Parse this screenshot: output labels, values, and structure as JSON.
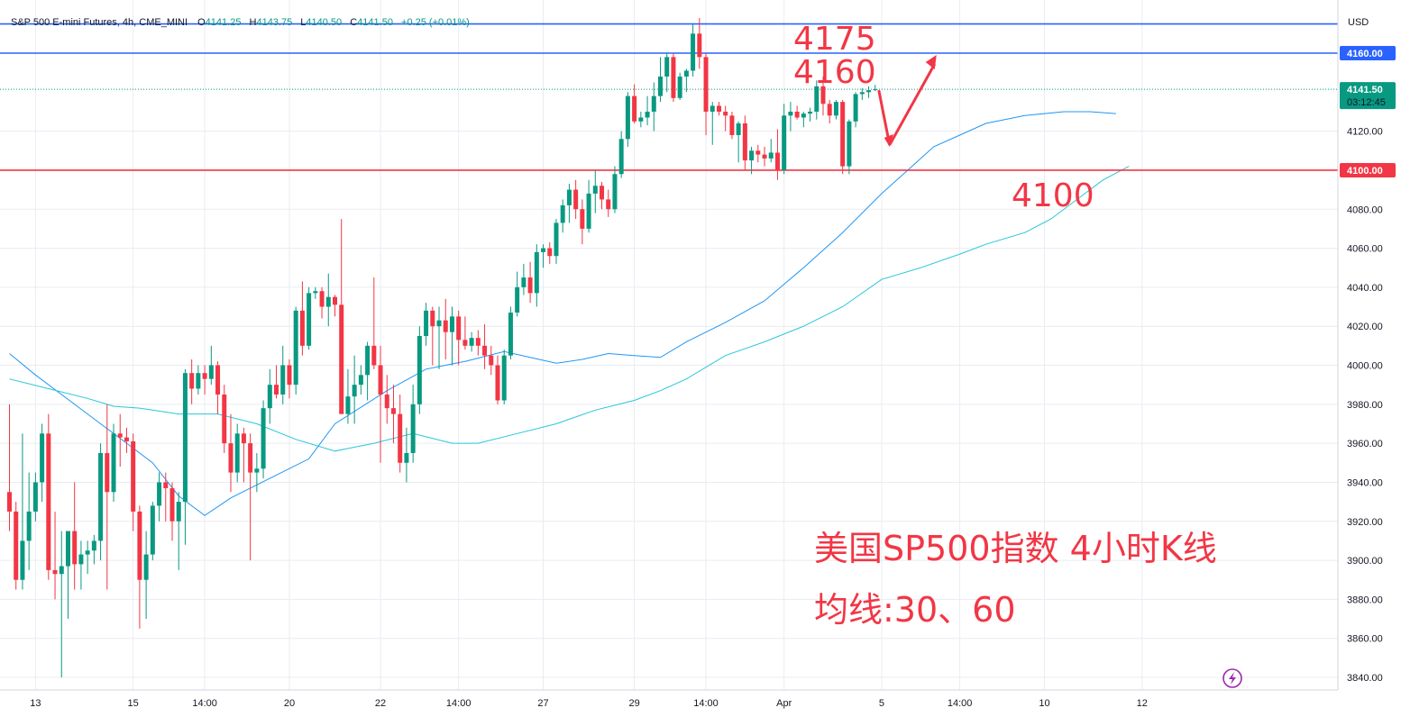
{
  "chart_data": {
    "type": "candlestick",
    "instrument": "S&P 500 E-mini Futures",
    "timeframe": "4h",
    "exchange": "CME_MINI",
    "legend": {
      "title": "S&P 500 E-mini Futures, 4h, CME_MINI",
      "o_label": "O",
      "o": "4141.25",
      "h_label": "H",
      "h": "4143.75",
      "l_label": "L",
      "l": "4140.50",
      "c_label": "C",
      "c": "4141.50",
      "change": "+0.25 (+0.01%)"
    },
    "currency": "USD",
    "ylim": [
      3835,
      4190
    ],
    "y_ticks": [
      3840,
      3860,
      3880,
      3900,
      3920,
      3940,
      3960,
      3980,
      4000,
      4020,
      4040,
      4060,
      4080,
      4120
    ],
    "x_ticks": [
      {
        "label": "13",
        "bar": 4
      },
      {
        "label": "15",
        "bar": 19
      },
      {
        "label": "14:00",
        "bar": 30
      },
      {
        "label": "20",
        "bar": 43
      },
      {
        "label": "22",
        "bar": 57
      },
      {
        "label": "14:00",
        "bar": 69
      },
      {
        "label": "27",
        "bar": 82
      },
      {
        "label": "29",
        "bar": 96
      },
      {
        "label": "14:00",
        "bar": 107
      },
      {
        "label": "Apr",
        "bar": 119
      },
      {
        "label": "5",
        "bar": 134
      },
      {
        "label": "14:00",
        "bar": 146
      },
      {
        "label": "10",
        "bar": 159
      },
      {
        "label": "12",
        "bar": 174
      }
    ],
    "candles": [
      [
        3935,
        3980,
        3915,
        3925
      ],
      [
        3925,
        3930,
        3885,
        3890
      ],
      [
        3890,
        3965,
        3885,
        3910
      ],
      [
        3910,
        3945,
        3895,
        3925
      ],
      [
        3925,
        3945,
        3920,
        3940
      ],
      [
        3940,
        3970,
        3930,
        3965
      ],
      [
        3965,
        3975,
        3890,
        3895
      ],
      [
        3895,
        3925,
        3880,
        3893
      ],
      [
        3893,
        3915,
        3840,
        3897
      ],
      [
        3897,
        3915,
        3870,
        3915
      ],
      [
        3915,
        3940,
        3885,
        3898
      ],
      [
        3898,
        3910,
        3885,
        3903
      ],
      [
        3903,
        3910,
        3893,
        3905
      ],
      [
        3905,
        3913,
        3898,
        3910
      ],
      [
        3910,
        3960,
        3900,
        3955
      ],
      [
        3955,
        3980,
        3885,
        3935
      ],
      [
        3935,
        3970,
        3930,
        3965
      ],
      [
        3965,
        3975,
        3948,
        3963
      ],
      [
        3963,
        3968,
        3955,
        3961
      ],
      [
        3961,
        3965,
        3915,
        3925
      ],
      [
        3925,
        3928,
        3865,
        3890
      ],
      [
        3890,
        3915,
        3870,
        3903
      ],
      [
        3903,
        3930,
        3900,
        3928
      ],
      [
        3928,
        3945,
        3920,
        3940
      ],
      [
        3940,
        3945,
        3920,
        3937
      ],
      [
        3937,
        3940,
        3910,
        3920
      ],
      [
        3920,
        3935,
        3895,
        3930
      ],
      [
        3930,
        3998,
        3908,
        3996
      ],
      [
        3996,
        4003,
        3980,
        3988
      ],
      [
        3988,
        4000,
        3985,
        3996
      ],
      [
        3996,
        4000,
        3985,
        3993
      ],
      [
        3993,
        4010,
        3990,
        4000
      ],
      [
        4000,
        4002,
        3975,
        3985
      ],
      [
        3985,
        3990,
        3955,
        3960
      ],
      [
        3960,
        3975,
        3935,
        3945
      ],
      [
        3945,
        3970,
        3940,
        3965
      ],
      [
        3965,
        3968,
        3940,
        3960
      ],
      [
        3960,
        3965,
        3900,
        3945
      ],
      [
        3945,
        3955,
        3935,
        3947
      ],
      [
        3947,
        3982,
        3942,
        3978
      ],
      [
        3978,
        3998,
        3970,
        3990
      ],
      [
        3990,
        4000,
        3983,
        3985
      ],
      [
        3985,
        4010,
        3980,
        4000
      ],
      [
        4000,
        4003,
        3983,
        3990
      ],
      [
        3990,
        4030,
        3985,
        4028
      ],
      [
        4028,
        4043,
        4005,
        4010
      ],
      [
        4010,
        4040,
        4008,
        4037
      ],
      [
        4037,
        4040,
        4034,
        4038
      ],
      [
        4038,
        4040,
        4024,
        4030
      ],
      [
        4030,
        4047,
        4020,
        4035
      ],
      [
        4035,
        4036,
        4025,
        4031
      ],
      [
        4031,
        4075,
        3975,
        3975
      ],
      [
        3975,
        3998,
        3970,
        3984
      ],
      [
        3984,
        4005,
        3970,
        3990
      ],
      [
        3990,
        4000,
        3985,
        3995
      ],
      [
        3995,
        4012,
        3982,
        4010
      ],
      [
        4010,
        4045,
        3998,
        4000
      ],
      [
        4000,
        4010,
        3950,
        3985
      ],
      [
        3985,
        3995,
        3970,
        3978
      ],
      [
        3978,
        3990,
        3960,
        3975
      ],
      [
        3975,
        3985,
        3945,
        3950
      ],
      [
        3950,
        3968,
        3940,
        3955
      ],
      [
        3955,
        3990,
        3950,
        3980
      ],
      [
        3980,
        4020,
        3975,
        4015
      ],
      [
        4015,
        4032,
        4010,
        4028
      ],
      [
        4028,
        4030,
        4000,
        4020
      ],
      [
        4020,
        4030,
        3998,
        4023
      ],
      [
        4023,
        4034,
        4003,
        4017
      ],
      [
        4017,
        4030,
        4000,
        4025
      ],
      [
        4025,
        4028,
        4000,
        4013
      ],
      [
        4013,
        4025,
        4008,
        4010
      ],
      [
        4010,
        4017,
        4007,
        4014
      ],
      [
        4014,
        4018,
        4005,
        4010
      ],
      [
        4010,
        4021,
        3998,
        4005
      ],
      [
        4005,
        4010,
        3995,
        4000
      ],
      [
        4000,
        4005,
        3980,
        3982
      ],
      [
        3982,
        4008,
        3980,
        4005
      ],
      [
        4005,
        4030,
        4003,
        4027
      ],
      [
        4027,
        4048,
        4025,
        4040
      ],
      [
        4040,
        4052,
        4036,
        4045
      ],
      [
        4045,
        4053,
        4032,
        4037
      ],
      [
        4037,
        4062,
        4030,
        4058
      ],
      [
        4058,
        4062,
        4050,
        4060
      ],
      [
        4060,
        4063,
        4052,
        4056
      ],
      [
        4056,
        4075,
        4052,
        4073
      ],
      [
        4073,
        4085,
        4068,
        4082
      ],
      [
        4082,
        4093,
        4073,
        4090
      ],
      [
        4090,
        4095,
        4075,
        4080
      ],
      [
        4080,
        4085,
        4062,
        4070
      ],
      [
        4070,
        4095,
        4068,
        4088
      ],
      [
        4088,
        4100,
        4078,
        4092
      ],
      [
        4092,
        4094,
        4080,
        4085
      ],
      [
        4085,
        4090,
        4076,
        4080
      ],
      [
        4080,
        4102,
        4078,
        4098
      ],
      [
        4098,
        4120,
        4096,
        4116
      ],
      [
        4116,
        4140,
        4112,
        4138
      ],
      [
        4138,
        4144,
        4124,
        4125
      ],
      [
        4125,
        4130,
        4122,
        4127
      ],
      [
        4127,
        4138,
        4123,
        4130
      ],
      [
        4130,
        4145,
        4120,
        4138
      ],
      [
        4138,
        4158,
        4135,
        4148
      ],
      [
        4148,
        4160,
        4140,
        4158
      ],
      [
        4158,
        4160,
        4135,
        4137
      ],
      [
        4137,
        4150,
        4136,
        4148
      ],
      [
        4148,
        4152,
        4140,
        4151
      ],
      [
        4151,
        4175,
        4148,
        4170
      ],
      [
        4170,
        4178,
        4152,
        4158
      ],
      [
        4158,
        4160,
        4118,
        4130
      ],
      [
        4130,
        4135,
        4113,
        4133
      ],
      [
        4133,
        4135,
        4128,
        4130
      ],
      [
        4130,
        4133,
        4120,
        4128
      ],
      [
        4128,
        4130,
        4116,
        4118
      ],
      [
        4118,
        4125,
        4104,
        4124
      ],
      [
        4124,
        4128,
        4100,
        4105
      ],
      [
        4105,
        4112,
        4098,
        4110
      ],
      [
        4110,
        4113,
        4104,
        4108
      ],
      [
        4108,
        4112,
        4102,
        4106
      ],
      [
        4106,
        4116,
        4104,
        4109
      ],
      [
        4109,
        4121,
        4095,
        4100
      ],
      [
        4100,
        4134,
        4098,
        4128
      ],
      [
        4128,
        4135,
        4120,
        4130
      ],
      [
        4130,
        4133,
        4126,
        4127
      ],
      [
        4127,
        4130,
        4122,
        4129
      ],
      [
        4129,
        4132,
        4125,
        4130
      ],
      [
        4130,
        4146,
        4126,
        4143
      ],
      [
        4143,
        4148,
        4128,
        4134
      ],
      [
        4134,
        4136,
        4124,
        4128
      ],
      [
        4128,
        4136,
        4126,
        4135
      ],
      [
        4135,
        4136,
        4098,
        4102
      ],
      [
        4102,
        4126,
        4098,
        4125
      ],
      [
        4125,
        4140,
        4122,
        4139
      ],
      [
        4139,
        4142,
        4136,
        4140
      ],
      [
        4140,
        4143,
        4137,
        4141
      ],
      [
        4141.25,
        4143.75,
        4140.5,
        4141.5
      ]
    ],
    "ma30": [
      [
        0,
        4006
      ],
      [
        4,
        3995
      ],
      [
        8,
        3985
      ],
      [
        14,
        3970
      ],
      [
        18,
        3960
      ],
      [
        22,
        3950
      ],
      [
        26,
        3933
      ],
      [
        30,
        3923
      ],
      [
        34,
        3932
      ],
      [
        40,
        3942
      ],
      [
        46,
        3952
      ],
      [
        50,
        3970
      ],
      [
        58,
        3987
      ],
      [
        64,
        3998
      ],
      [
        70,
        4002
      ],
      [
        76,
        4007
      ],
      [
        80,
        4004
      ],
      [
        84,
        4001
      ],
      [
        88,
        4003
      ],
      [
        92,
        4006
      ],
      [
        96,
        4005
      ],
      [
        100,
        4004
      ],
      [
        104,
        4012
      ],
      [
        110,
        4022
      ],
      [
        116,
        4033
      ],
      [
        122,
        4050
      ],
      [
        128,
        4068
      ],
      [
        134,
        4088
      ],
      [
        138,
        4100
      ],
      [
        142,
        4112
      ],
      [
        146,
        4118
      ],
      [
        150,
        4124
      ],
      [
        156,
        4128
      ],
      [
        162,
        4130
      ],
      [
        166,
        4130
      ],
      [
        170,
        4129
      ]
    ],
    "ma60": [
      [
        0,
        3993
      ],
      [
        6,
        3988
      ],
      [
        12,
        3983
      ],
      [
        16,
        3979
      ],
      [
        20,
        3978
      ],
      [
        26,
        3975
      ],
      [
        32,
        3975
      ],
      [
        38,
        3970
      ],
      [
        44,
        3962
      ],
      [
        50,
        3956
      ],
      [
        56,
        3960
      ],
      [
        62,
        3965
      ],
      [
        68,
        3960
      ],
      [
        72,
        3960
      ],
      [
        78,
        3965
      ],
      [
        84,
        3970
      ],
      [
        90,
        3977
      ],
      [
        96,
        3982
      ],
      [
        100,
        3987
      ],
      [
        104,
        3993
      ],
      [
        110,
        4005
      ],
      [
        116,
        4012
      ],
      [
        122,
        4020
      ],
      [
        128,
        4030
      ],
      [
        134,
        4044
      ],
      [
        140,
        4050
      ],
      [
        146,
        4057
      ],
      [
        150,
        4062
      ],
      [
        156,
        4068
      ],
      [
        160,
        4075
      ],
      [
        164,
        4085
      ],
      [
        168,
        4095
      ],
      [
        172,
        4102
      ]
    ],
    "levels": [
      {
        "price": 4175,
        "color": "#2962ff"
      },
      {
        "price": 4160,
        "color": "#2962ff",
        "tag": "4160.00"
      },
      {
        "price": 4100,
        "color": "#f23645",
        "tag": "4100.00"
      }
    ],
    "last_price": {
      "price": 4141.5,
      "label": "4141.50",
      "countdown": "03:12:45"
    },
    "annotations": {
      "level_4175": "4175",
      "level_4160": "4160",
      "level_4100": "4100",
      "title_line1": "美国SP500指数 4小时K线",
      "title_line2": "均线:30、60"
    },
    "colors": {
      "up": "#089981",
      "down": "#f23645",
      "ma30": "#2196f3",
      "ma60": "#26c6da",
      "grid": "#e9ecf2",
      "level_blue": "#2962ff",
      "level_red": "#f23645",
      "annotation": "#f23645"
    }
  }
}
